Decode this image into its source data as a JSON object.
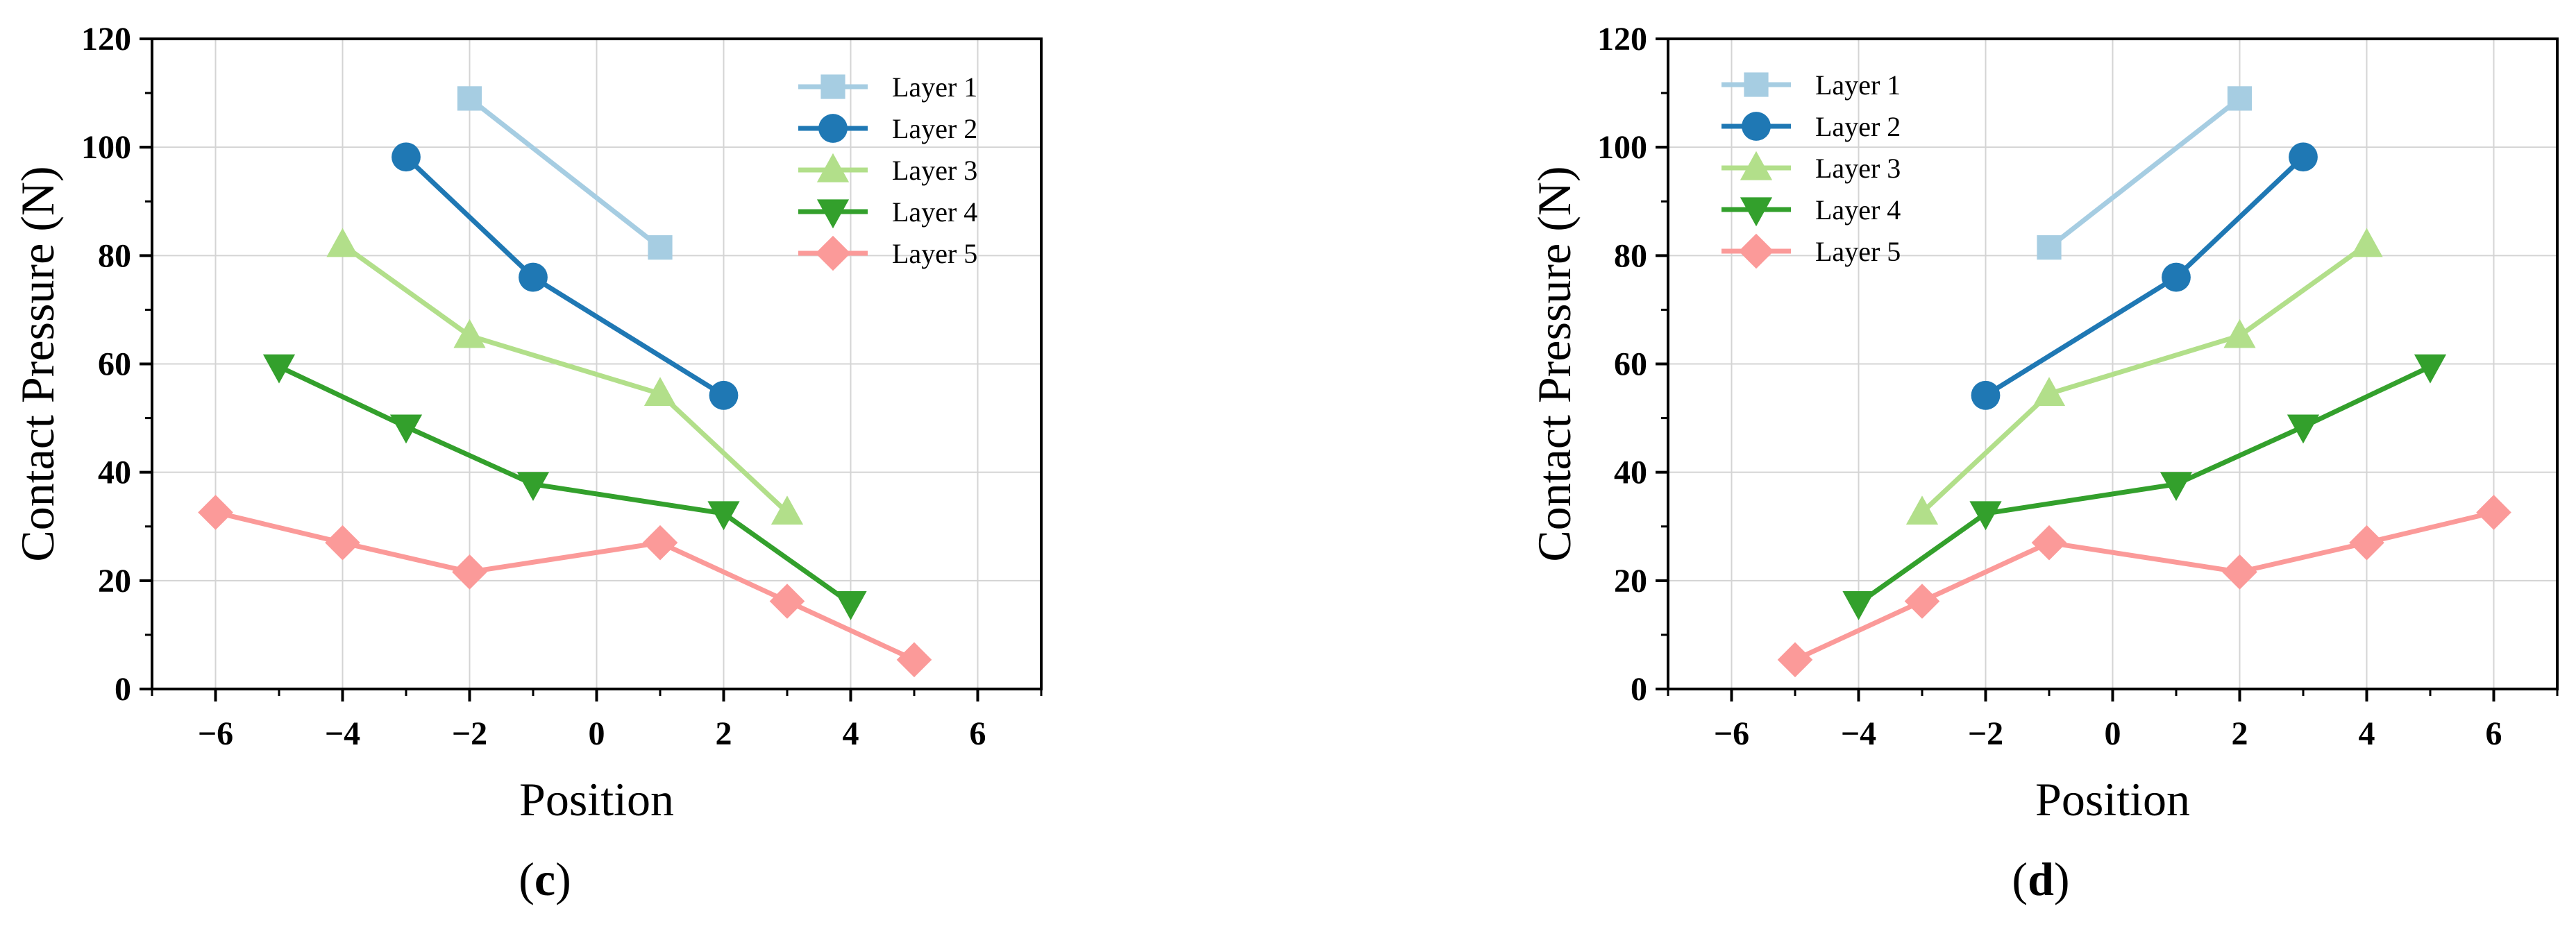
{
  "figure": {
    "panels": [
      "c",
      "d"
    ]
  },
  "chart_data": [
    {
      "type": "line",
      "panel_label": "c",
      "xlabel": "Position",
      "ylabel": "Contact Pressure (N)",
      "xlim": [
        -7,
        7
      ],
      "ylim": [
        0,
        120
      ],
      "xticks": [
        "−6",
        "−4",
        "−2",
        "0",
        "2",
        "4",
        "6"
      ],
      "yticks": [
        "0",
        "20",
        "40",
        "60",
        "80",
        "100",
        "120"
      ],
      "grid": true,
      "legend_position": "top-right",
      "series": [
        {
          "name": "Layer 1",
          "marker": "square",
          "color": "#a6cde2",
          "points": [
            [
              -2,
              109
            ],
            [
              1,
              81.5
            ]
          ]
        },
        {
          "name": "Layer 2",
          "marker": "circle",
          "color": "#1f78b4",
          "points": [
            [
              -3,
              98.2
            ],
            [
              -1,
              76
            ],
            [
              2,
              54.2
            ]
          ]
        },
        {
          "name": "Layer 3",
          "marker": "triangle-up",
          "color": "#b2df8a",
          "points": [
            [
              -4,
              82
            ],
            [
              -2,
              65.2
            ],
            [
              1,
              54.5
            ],
            [
              3,
              32.6
            ]
          ]
        },
        {
          "name": "Layer 4",
          "marker": "triangle-down",
          "color": "#33a02c",
          "points": [
            [
              -5,
              59.5
            ],
            [
              -3,
              48.4
            ],
            [
              -1,
              37.8
            ],
            [
              2,
              32.4
            ],
            [
              4,
              15.8
            ]
          ]
        },
        {
          "name": "Layer 5",
          "marker": "diamond",
          "color": "#fb9a99",
          "points": [
            [
              -6,
              32.6
            ],
            [
              -4,
              27
            ],
            [
              -2,
              21.6
            ],
            [
              1,
              27
            ],
            [
              3,
              16.2
            ],
            [
              5,
              5.4
            ]
          ]
        }
      ]
    },
    {
      "type": "line",
      "panel_label": "d",
      "xlabel": "Position",
      "ylabel": "Contact Pressure (N)",
      "xlim": [
        -7,
        7
      ],
      "ylim": [
        0,
        120
      ],
      "xticks": [
        "−6",
        "−4",
        "−2",
        "0",
        "2",
        "4",
        "6"
      ],
      "yticks": [
        "0",
        "20",
        "40",
        "60",
        "80",
        "100",
        "120"
      ],
      "grid": true,
      "legend_position": "top-left",
      "series": [
        {
          "name": "Layer 1",
          "marker": "square",
          "color": "#a6cde2",
          "points": [
            [
              -1,
              81.5
            ],
            [
              2,
              109
            ]
          ]
        },
        {
          "name": "Layer 2",
          "marker": "circle",
          "color": "#1f78b4",
          "points": [
            [
              -2,
              54.2
            ],
            [
              1,
              76
            ],
            [
              3,
              98.2
            ]
          ]
        },
        {
          "name": "Layer 3",
          "marker": "triangle-up",
          "color": "#b2df8a",
          "points": [
            [
              -3,
              32.6
            ],
            [
              -1,
              54.5
            ],
            [
              2,
              65.2
            ],
            [
              4,
              82
            ]
          ]
        },
        {
          "name": "Layer 4",
          "marker": "triangle-down",
          "color": "#33a02c",
          "points": [
            [
              -4,
              15.8
            ],
            [
              -2,
              32.4
            ],
            [
              1,
              37.8
            ],
            [
              3,
              48.4
            ],
            [
              5,
              59.5
            ]
          ]
        },
        {
          "name": "Layer 5",
          "marker": "diamond",
          "color": "#fb9a99",
          "points": [
            [
              -5,
              5.4
            ],
            [
              -3,
              16.2
            ],
            [
              -1,
              27
            ],
            [
              2,
              21.6
            ],
            [
              4,
              27
            ],
            [
              6,
              32.6
            ]
          ]
        }
      ]
    }
  ]
}
